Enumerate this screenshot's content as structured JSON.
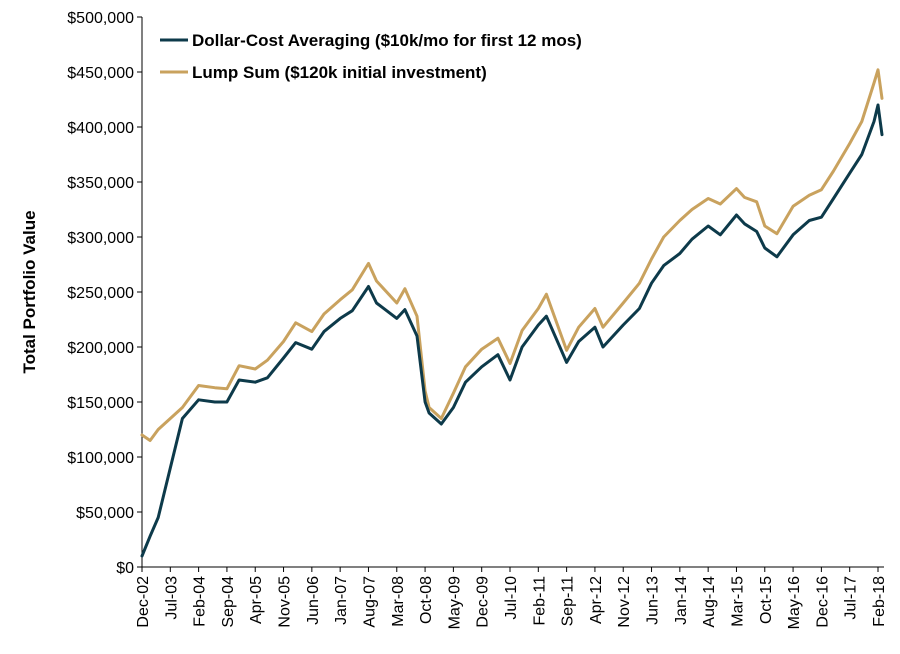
{
  "chart_data": {
    "type": "line",
    "title": "",
    "xlabel": "",
    "ylabel": "Total Portfolio Value",
    "ylim": [
      0,
      500000
    ],
    "grid": false,
    "legend_position": "top-left",
    "y_ticks": [
      {
        "value": 0,
        "label": "$0"
      },
      {
        "value": 50000,
        "label": "$50,000"
      },
      {
        "value": 100000,
        "label": "$100,000"
      },
      {
        "value": 150000,
        "label": "$150,000"
      },
      {
        "value": 200000,
        "label": "$200,000"
      },
      {
        "value": 250000,
        "label": "$250,000"
      },
      {
        "value": 300000,
        "label": "$300,000"
      },
      {
        "value": 350000,
        "label": "$350,000"
      },
      {
        "value": 400000,
        "label": "$400,000"
      },
      {
        "value": 450000,
        "label": "$450,000"
      },
      {
        "value": 500000,
        "label": "$500,000"
      }
    ],
    "x_ticks": [
      "Dec-02",
      "Jul-03",
      "Feb-04",
      "Sep-04",
      "Apr-05",
      "Nov-05",
      "Jun-06",
      "Jan-07",
      "Aug-07",
      "Mar-08",
      "Oct-08",
      "May-09",
      "Dec-09",
      "Jul-10",
      "Feb-11",
      "Sep-11",
      "Apr-12",
      "Nov-12",
      "Jun-13",
      "Jan-14",
      "Aug-14",
      "Mar-15",
      "Oct-15",
      "May-16",
      "Dec-16",
      "Jul-17",
      "Feb-18"
    ],
    "x": [
      "Dec-02",
      "Feb-03",
      "Apr-03",
      "Jul-03",
      "Oct-03",
      "Feb-04",
      "Jun-04",
      "Sep-04",
      "Dec-04",
      "Apr-05",
      "Jul-05",
      "Nov-05",
      "Feb-06",
      "Jun-06",
      "Sep-06",
      "Jan-07",
      "Apr-07",
      "Aug-07",
      "Oct-07",
      "Mar-08",
      "May-08",
      "Aug-08",
      "Oct-08",
      "Nov-08",
      "Feb-09",
      "May-09",
      "Aug-09",
      "Dec-09",
      "Apr-10",
      "Jul-10",
      "Oct-10",
      "Feb-11",
      "Apr-11",
      "Sep-11",
      "Dec-11",
      "Apr-12",
      "Jun-12",
      "Nov-12",
      "Mar-13",
      "Jun-13",
      "Sep-13",
      "Jan-14",
      "Apr-14",
      "Aug-14",
      "Nov-14",
      "Mar-15",
      "May-15",
      "Aug-15",
      "Oct-15",
      "Jan-16",
      "May-16",
      "Sep-16",
      "Dec-16",
      "Mar-17",
      "Jul-17",
      "Oct-17",
      "Jan-18",
      "Feb-18",
      "Mar-18"
    ],
    "series": [
      {
        "name": "Dollar-Cost Averaging ($10k/mo for first 12 mos)",
        "color": "#0d3a4a",
        "values": [
          10000,
          28000,
          45000,
          90000,
          135000,
          152000,
          150000,
          150000,
          170000,
          168000,
          172000,
          190000,
          204000,
          198000,
          214000,
          226000,
          233000,
          255000,
          240000,
          226000,
          234000,
          210000,
          150000,
          140000,
          130000,
          145000,
          168000,
          182000,
          193000,
          170000,
          200000,
          220000,
          228000,
          186000,
          205000,
          218000,
          200000,
          220000,
          235000,
          258000,
          274000,
          285000,
          298000,
          310000,
          302000,
          320000,
          312000,
          305000,
          290000,
          282000,
          302000,
          315000,
          318000,
          335000,
          358000,
          375000,
          405000,
          420000,
          393000
        ]
      },
      {
        "name": "Lump Sum ($120k initial investment)",
        "color": "#c9a25e",
        "values": [
          120000,
          115000,
          125000,
          135000,
          145000,
          165000,
          163000,
          162000,
          183000,
          180000,
          188000,
          205000,
          222000,
          214000,
          230000,
          243000,
          252000,
          276000,
          260000,
          240000,
          253000,
          228000,
          160000,
          145000,
          135000,
          158000,
          182000,
          198000,
          208000,
          185000,
          215000,
          235000,
          248000,
          197000,
          218000,
          235000,
          218000,
          240000,
          258000,
          280000,
          300000,
          315000,
          325000,
          335000,
          330000,
          344000,
          336000,
          332000,
          310000,
          303000,
          328000,
          338000,
          343000,
          360000,
          385000,
          405000,
          440000,
          452000,
          426000
        ]
      }
    ]
  }
}
